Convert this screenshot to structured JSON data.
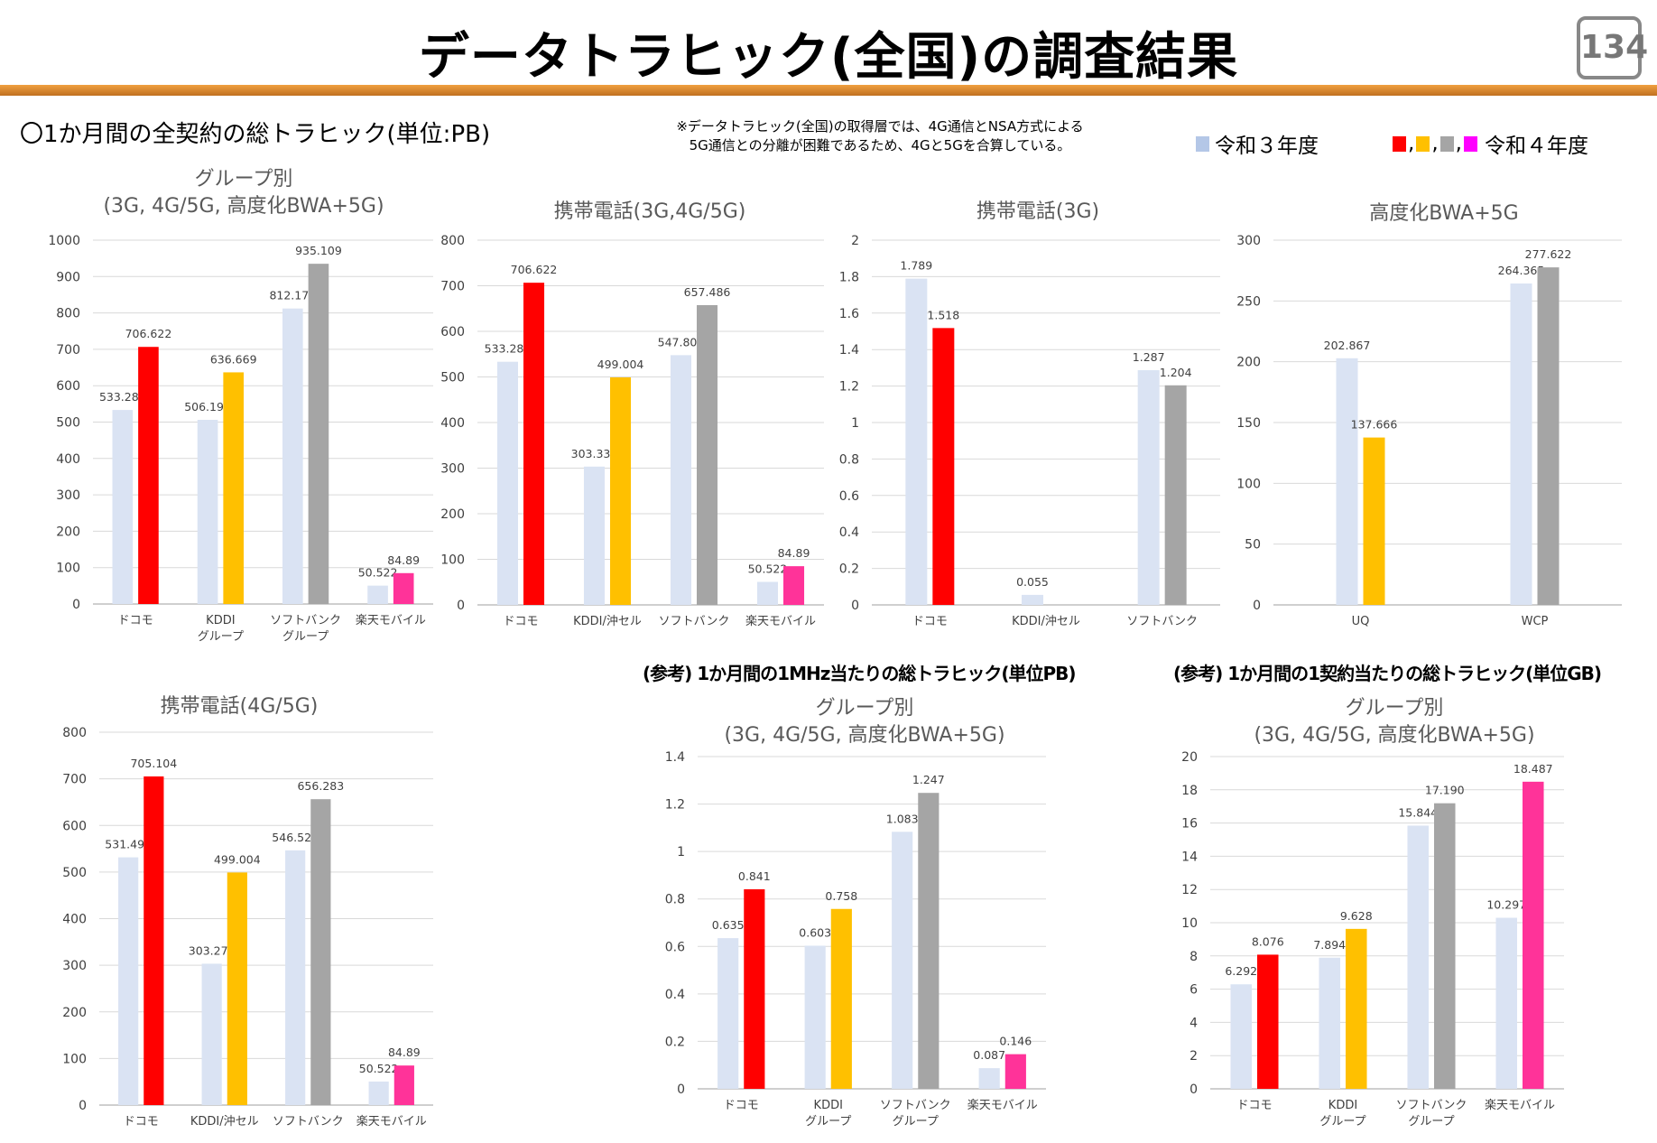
{
  "header": {
    "title": "データトラヒック(全国)の調査結果",
    "page": "134"
  },
  "section_title": "〇1か月間の全契約の総トラヒック(単位:PB)",
  "note": [
    "※データトラヒック(全国)の取得層では、4G通信とNSA方式による",
    "5G通信との分離が困難であるため、4Gと5Gを合算している。"
  ],
  "legend": {
    "prev": "令和３年度",
    "curr": "令和４年度",
    "sep": ",",
    "colors": {
      "prev": "#b4c7e7",
      "curr": [
        "#ff0000",
        "#ffc000",
        "#a5a5a5",
        "#ff00ff"
      ]
    }
  },
  "reference_titles": [
    "(参考) 1か月間の1MHz当たりの総トラヒック(単位PB)",
    "(参考) 1か月間の1契約当たりの総トラヒック(単位GB)"
  ],
  "colors": {
    "prev": "#dae3f3",
    "docomo": "#ff0000",
    "kddi": "#ffc000",
    "softbank": "#a5a5a5",
    "rakuten": "#ff3399"
  },
  "chart_data": [
    {
      "type": "bar",
      "title": [
        "グループ別",
        "(3G, 4G/5G, 高度化BWA+5G)"
      ],
      "ylim": [
        0,
        1000
      ],
      "ystep": 100,
      "yticks": [
        "0",
        "100",
        "200",
        "300",
        "400",
        "500",
        "600",
        "700",
        "800",
        "900",
        "1000"
      ],
      "categories": [
        "ドコモ",
        "KDDI\nグループ",
        "ソフトバンク\nグループ",
        "楽天モバイル"
      ],
      "series": [
        {
          "name": "令和３年度",
          "values": [
            533.283,
            506.198,
            812.174,
            50.522
          ]
        },
        {
          "name": "令和４年度",
          "values": [
            706.622,
            636.669,
            935.109,
            84.89
          ]
        }
      ],
      "labels": [
        [
          "533.283",
          "506.198",
          "812.174",
          "50.522"
        ],
        [
          "706.622",
          "636.669",
          "935.109",
          "84.89"
        ]
      ],
      "curr_colors": [
        "#ff0000",
        "#ffc000",
        "#a5a5a5",
        "#ff3399"
      ],
      "grid": true
    },
    {
      "type": "bar",
      "title": [
        "携帯電話(3G,4G/5G)"
      ],
      "ylim": [
        0,
        800
      ],
      "ystep": 100,
      "yticks": [
        "0",
        "100",
        "200",
        "300",
        "400",
        "500",
        "600",
        "700",
        "800"
      ],
      "categories": [
        "ドコモ",
        "KDDI/沖セル",
        "ソフトバンク",
        "楽天モバイル"
      ],
      "series": [
        {
          "name": "令和３年度",
          "values": [
            533.283,
            303.331,
            547.809,
            50.522
          ]
        },
        {
          "name": "令和４年度",
          "values": [
            706.622,
            499.004,
            657.486,
            84.89
          ]
        }
      ],
      "labels": [
        [
          "533.283",
          "303.331",
          "547.809",
          "50.522"
        ],
        [
          "706.622",
          "499.004",
          "657.486",
          "84.89"
        ]
      ],
      "curr_colors": [
        "#ff0000",
        "#ffc000",
        "#a5a5a5",
        "#ff3399"
      ],
      "grid": true
    },
    {
      "type": "bar",
      "title": [
        "携帯電話(3G)"
      ],
      "ylim": [
        0,
        2
      ],
      "ystep": 0.2,
      "yticks": [
        "0",
        "0.2",
        "0.4",
        "0.6",
        "0.8",
        "1",
        "1.2",
        "1.4",
        "1.6",
        "1.8",
        "2"
      ],
      "categories": [
        "ドコモ",
        "KDDI/沖セル",
        "ソフトバンク"
      ],
      "series": [
        {
          "name": "令和３年度",
          "values": [
            1.789,
            0.055,
            1.287
          ]
        },
        {
          "name": "令和４年度",
          "values": [
            1.518,
            null,
            1.204
          ]
        }
      ],
      "labels": [
        [
          "1.789",
          "0.055",
          "1.287"
        ],
        [
          "1.518",
          "",
          "1.204"
        ]
      ],
      "curr_colors": [
        "#ff0000",
        "#ffc000",
        "#a5a5a5"
      ],
      "grid": true
    },
    {
      "type": "bar",
      "title": [
        "高度化BWA+5G"
      ],
      "ylim": [
        0,
        300
      ],
      "ystep": 50,
      "yticks": [
        "0",
        "50",
        "100",
        "150",
        "200",
        "250",
        "300"
      ],
      "categories": [
        "UQ",
        "WCP"
      ],
      "series": [
        {
          "name": "令和３年度",
          "values": [
            202.867,
            264.365
          ]
        },
        {
          "name": "令和４年度",
          "values": [
            137.666,
            277.622
          ]
        }
      ],
      "labels": [
        [
          "202.867",
          "264.365"
        ],
        [
          "137.666",
          "277.622"
        ]
      ],
      "curr_colors": [
        "#ffc000",
        "#a5a5a5"
      ],
      "grid": true
    },
    {
      "type": "bar",
      "title": [
        "携帯電話(4G/5G)"
      ],
      "ylim": [
        0,
        800
      ],
      "ystep": 100,
      "yticks": [
        "0",
        "100",
        "200",
        "300",
        "400",
        "500",
        "600",
        "700",
        "800"
      ],
      "categories": [
        "ドコモ",
        "KDDI/沖セル",
        "ソフトバンク",
        "楽天モバイル"
      ],
      "series": [
        {
          "name": "令和３年度",
          "values": [
            531.495,
            303.276,
            546.522,
            50.522
          ]
        },
        {
          "name": "令和４年度",
          "values": [
            705.104,
            499.004,
            656.283,
            84.89
          ]
        }
      ],
      "labels": [
        [
          "531.495",
          "303.276",
          "546.522",
          "50.522"
        ],
        [
          "705.104",
          "499.004",
          "656.283",
          "84.89"
        ]
      ],
      "curr_colors": [
        "#ff0000",
        "#ffc000",
        "#a5a5a5",
        "#ff3399"
      ],
      "grid": true
    },
    {
      "type": "bar",
      "title": [
        "グループ別",
        "(3G, 4G/5G, 高度化BWA+5G)"
      ],
      "ylim": [
        0,
        1.4
      ],
      "ystep": 0.2,
      "yticks": [
        "0",
        "0.2",
        "0.4",
        "0.6",
        "0.8",
        "1",
        "1.2",
        "1.4"
      ],
      "categories": [
        "ドコモ",
        "KDDI\nグループ",
        "ソフトバンク\nグループ",
        "楽天モバイル"
      ],
      "series": [
        {
          "name": "令和３年度",
          "values": [
            0.635,
            0.603,
            1.083,
            0.087
          ]
        },
        {
          "name": "令和４年度",
          "values": [
            0.841,
            0.758,
            1.247,
            0.146
          ]
        }
      ],
      "labels": [
        [
          "0.635",
          "0.603",
          "1.083",
          "0.087"
        ],
        [
          "0.841",
          "0.758",
          "1.247",
          "0.146"
        ]
      ],
      "curr_colors": [
        "#ff0000",
        "#ffc000",
        "#a5a5a5",
        "#ff3399"
      ],
      "grid": true
    },
    {
      "type": "bar",
      "title": [
        "グループ別",
        "(3G, 4G/5G, 高度化BWA+5G)"
      ],
      "ylim": [
        0,
        20
      ],
      "ystep": 2,
      "yticks": [
        "0",
        "2",
        "4",
        "6",
        "8",
        "10",
        "12",
        "14",
        "16",
        "18",
        "20"
      ],
      "categories": [
        "ドコモ",
        "KDDI\nグループ",
        "ソフトバンク\nグループ",
        "楽天モバイル"
      ],
      "series": [
        {
          "name": "令和３年度",
          "values": [
            6.292,
            7.894,
            15.844,
            10.297
          ]
        },
        {
          "name": "令和４年度",
          "values": [
            8.076,
            9.628,
            17.19,
            18.487
          ]
        }
      ],
      "labels": [
        [
          "6.292",
          "7.894",
          "15.844",
          "10.297"
        ],
        [
          "8.076",
          "9.628",
          "17.190",
          "18.487"
        ]
      ],
      "curr_colors": [
        "#ff0000",
        "#ffc000",
        "#a5a5a5",
        "#ff3399"
      ],
      "grid": true
    }
  ]
}
